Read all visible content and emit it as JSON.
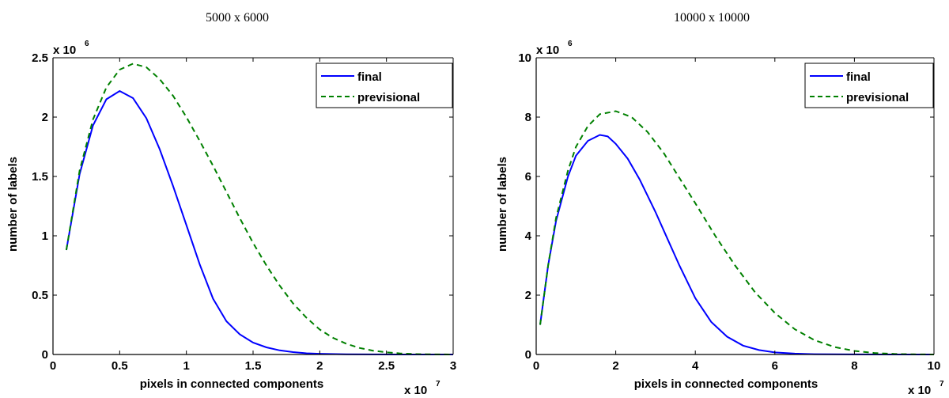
{
  "chart_data": [
    {
      "type": "line",
      "title": "5000 x 6000",
      "xlabel": "pixels in connected components",
      "ylabel": "number of labels",
      "x_multiplier": {
        "base": "x 10",
        "exp": "7"
      },
      "y_multiplier": {
        "base": "x 10",
        "exp": "6"
      },
      "xlim": [
        0,
        3
      ],
      "ylim": [
        0,
        2.5
      ],
      "xticks": [
        0,
        0.5,
        1,
        1.5,
        2,
        2.5,
        3
      ],
      "xtick_labels": [
        "0",
        "0.5",
        "1",
        "1.5",
        "2",
        "2.5",
        "3"
      ],
      "yticks": [
        0,
        0.5,
        1,
        1.5,
        2,
        2.5
      ],
      "ytick_labels": [
        "0",
        "0.5",
        "1",
        "1.5",
        "2",
        "2.5"
      ],
      "legend_position": "top-right",
      "series": [
        {
          "name": "final",
          "color": "#0000ff",
          "style": "solid",
          "x": [
            0.1,
            0.2,
            0.3,
            0.4,
            0.5,
            0.6,
            0.7,
            0.8,
            0.9,
            1.0,
            1.1,
            1.2,
            1.3,
            1.4,
            1.5,
            1.6,
            1.7,
            1.8,
            1.9,
            2.0,
            2.2,
            2.4,
            2.6,
            2.8,
            3.0
          ],
          "y": [
            0.88,
            1.52,
            1.93,
            2.15,
            2.22,
            2.16,
            1.99,
            1.73,
            1.42,
            1.09,
            0.76,
            0.47,
            0.28,
            0.17,
            0.1,
            0.06,
            0.035,
            0.02,
            0.01,
            0.006,
            0.002,
            0.001,
            0.0,
            0.0,
            0.0
          ]
        },
        {
          "name": "previsional",
          "color": "#008000",
          "style": "dashed",
          "x": [
            0.1,
            0.2,
            0.3,
            0.4,
            0.5,
            0.6,
            0.7,
            0.8,
            0.9,
            1.0,
            1.1,
            1.2,
            1.3,
            1.4,
            1.5,
            1.6,
            1.7,
            1.8,
            1.9,
            2.0,
            2.1,
            2.2,
            2.3,
            2.4,
            2.5,
            2.6,
            2.7,
            2.8,
            2.9,
            3.0
          ],
          "y": [
            0.88,
            1.55,
            1.98,
            2.25,
            2.4,
            2.45,
            2.42,
            2.32,
            2.18,
            2.0,
            1.8,
            1.59,
            1.37,
            1.15,
            0.94,
            0.75,
            0.58,
            0.43,
            0.31,
            0.21,
            0.14,
            0.09,
            0.055,
            0.032,
            0.018,
            0.009,
            0.004,
            0.002,
            0.001,
            0.0
          ]
        }
      ]
    },
    {
      "type": "line",
      "title": "10000 x 10000",
      "xlabel": "pixels in connected components",
      "ylabel": "number of labels",
      "x_multiplier": {
        "base": "x 10",
        "exp": "7"
      },
      "y_multiplier": {
        "base": "x 10",
        "exp": "6"
      },
      "xlim": [
        0,
        10
      ],
      "ylim": [
        0,
        10
      ],
      "xticks": [
        0,
        2,
        4,
        6,
        8,
        10
      ],
      "xtick_labels": [
        "0",
        "2",
        "4",
        "6",
        "8",
        "10"
      ],
      "yticks": [
        0,
        2,
        4,
        6,
        8,
        10
      ],
      "ytick_labels": [
        "0",
        "2",
        "4",
        "6",
        "8",
        "10"
      ],
      "legend_position": "top-right",
      "series": [
        {
          "name": "final",
          "color": "#0000ff",
          "style": "solid",
          "x": [
            0.1,
            0.3,
            0.5,
            0.8,
            1.0,
            1.3,
            1.6,
            1.8,
            2.0,
            2.3,
            2.6,
            3.0,
            3.3,
            3.6,
            4.0,
            4.4,
            4.8,
            5.2,
            5.6,
            6.0,
            6.5,
            7.0,
            7.5,
            8.0,
            9.0,
            10.0
          ],
          "y": [
            1.0,
            3.0,
            4.5,
            6.0,
            6.7,
            7.2,
            7.4,
            7.35,
            7.1,
            6.6,
            5.9,
            4.8,
            3.9,
            3.0,
            1.9,
            1.1,
            0.6,
            0.3,
            0.15,
            0.07,
            0.03,
            0.01,
            0.005,
            0.002,
            0.0,
            0.0
          ]
        },
        {
          "name": "previsional",
          "color": "#008000",
          "style": "dashed",
          "x": [
            0.1,
            0.3,
            0.5,
            0.8,
            1.0,
            1.3,
            1.6,
            2.0,
            2.4,
            2.8,
            3.2,
            3.6,
            4.0,
            4.5,
            5.0,
            5.5,
            6.0,
            6.5,
            7.0,
            7.5,
            8.0,
            8.5,
            9.0,
            9.5,
            10.0
          ],
          "y": [
            1.0,
            3.0,
            4.6,
            6.2,
            7.0,
            7.7,
            8.1,
            8.2,
            8.0,
            7.5,
            6.8,
            5.95,
            5.1,
            4.0,
            3.0,
            2.1,
            1.4,
            0.85,
            0.48,
            0.25,
            0.12,
            0.05,
            0.02,
            0.006,
            0.0
          ]
        }
      ]
    }
  ]
}
